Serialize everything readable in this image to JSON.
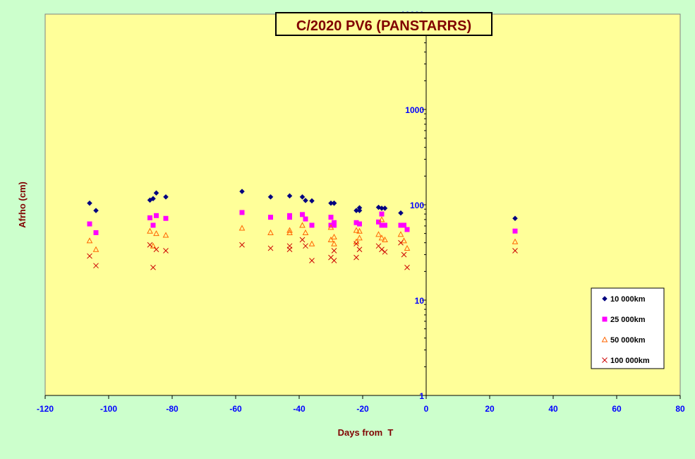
{
  "chart_data": {
    "type": "scatter",
    "title": "C/2020 PV6 (PANSTARRS)",
    "xlabel": "Days from  T",
    "ylabel": "Afrho (cm)",
    "xlim": [
      -120,
      80
    ],
    "ylim": [
      1,
      10000
    ],
    "yscale": "log",
    "grid": false,
    "legend_position": "bottom-right",
    "x_ticks": [
      -120,
      -100,
      -80,
      -60,
      -40,
      -20,
      0,
      20,
      40,
      60,
      80
    ],
    "y_ticks": [
      1,
      10,
      100,
      1000,
      10000
    ],
    "colors": {
      "background": "#ccffcc",
      "plot_area": "#ffff99",
      "axis_text": "#0000ff",
      "label_text": "#800000",
      "title_text": "#800000"
    },
    "series": [
      {
        "name": "10 000km",
        "marker": "diamond",
        "color": "#000080",
        "points": [
          [
            -106,
            104
          ],
          [
            -104,
            87
          ],
          [
            -87,
            112
          ],
          [
            -86,
            116
          ],
          [
            -85,
            133
          ],
          [
            -82,
            121
          ],
          [
            -58,
            138
          ],
          [
            -49,
            121
          ],
          [
            -43,
            124
          ],
          [
            -39,
            121
          ],
          [
            -38,
            111
          ],
          [
            -36,
            110
          ],
          [
            -30,
            104
          ],
          [
            -29,
            104
          ],
          [
            -29,
            104
          ],
          [
            -22,
            87
          ],
          [
            -21,
            93
          ],
          [
            -21,
            87
          ],
          [
            -15,
            94
          ],
          [
            -14,
            92
          ],
          [
            -13,
            92
          ],
          [
            -8,
            82
          ],
          [
            28,
            72
          ]
        ]
      },
      {
        "name": "25 000km",
        "marker": "square",
        "color": "#ff00ff",
        "points": [
          [
            -106,
            63
          ],
          [
            -104,
            51
          ],
          [
            -87,
            73
          ],
          [
            -86,
            61
          ],
          [
            -85,
            77
          ],
          [
            -82,
            72
          ],
          [
            -58,
            83
          ],
          [
            -49,
            74
          ],
          [
            -43,
            77
          ],
          [
            -43,
            74
          ],
          [
            -39,
            79
          ],
          [
            -38,
            71
          ],
          [
            -36,
            61
          ],
          [
            -30,
            74
          ],
          [
            -30,
            61
          ],
          [
            -29,
            65
          ],
          [
            -29,
            61
          ],
          [
            -22,
            65
          ],
          [
            -21,
            63
          ],
          [
            -15,
            66
          ],
          [
            -14,
            80
          ],
          [
            -14,
            61
          ],
          [
            -13,
            61
          ],
          [
            -8,
            61
          ],
          [
            -7,
            61
          ],
          [
            -6,
            55
          ],
          [
            28,
            53
          ]
        ]
      },
      {
        "name": "50 000km",
        "marker": "triangle",
        "color": "#ff6600",
        "points": [
          [
            -106,
            42
          ],
          [
            -104,
            34
          ],
          [
            -87,
            53
          ],
          [
            -86,
            37
          ],
          [
            -85,
            50
          ],
          [
            -82,
            48
          ],
          [
            -58,
            57
          ],
          [
            -49,
            51
          ],
          [
            -43,
            54
          ],
          [
            -43,
            51
          ],
          [
            -39,
            61
          ],
          [
            -38,
            51
          ],
          [
            -36,
            39
          ],
          [
            -30,
            58
          ],
          [
            -30,
            43
          ],
          [
            -29,
            46
          ],
          [
            -29,
            39
          ],
          [
            -22,
            54
          ],
          [
            -22,
            41
          ],
          [
            -21,
            53
          ],
          [
            -21,
            45
          ],
          [
            -15,
            49
          ],
          [
            -14,
            70
          ],
          [
            -14,
            45
          ],
          [
            -13,
            43
          ],
          [
            -8,
            49
          ],
          [
            -7,
            42
          ],
          [
            -6,
            35
          ],
          [
            28,
            41
          ]
        ]
      },
      {
        "name": "100 000km",
        "marker": "cross",
        "color": "#cc0000",
        "points": [
          [
            -106,
            29
          ],
          [
            -104,
            23
          ],
          [
            -87,
            38
          ],
          [
            -86,
            22
          ],
          [
            -85,
            34
          ],
          [
            -82,
            33
          ],
          [
            -58,
            38
          ],
          [
            -49,
            35
          ],
          [
            -43,
            37
          ],
          [
            -43,
            34
          ],
          [
            -39,
            43
          ],
          [
            -38,
            37
          ],
          [
            -36,
            26
          ],
          [
            -30,
            28
          ],
          [
            -29,
            33
          ],
          [
            -29,
            26
          ],
          [
            -22,
            39
          ],
          [
            -22,
            28
          ],
          [
            -21,
            34
          ],
          [
            -15,
            37
          ],
          [
            -14,
            34
          ],
          [
            -13,
            32
          ],
          [
            -8,
            40
          ],
          [
            -7,
            30
          ],
          [
            -6,
            22
          ],
          [
            28,
            33
          ]
        ]
      }
    ]
  }
}
